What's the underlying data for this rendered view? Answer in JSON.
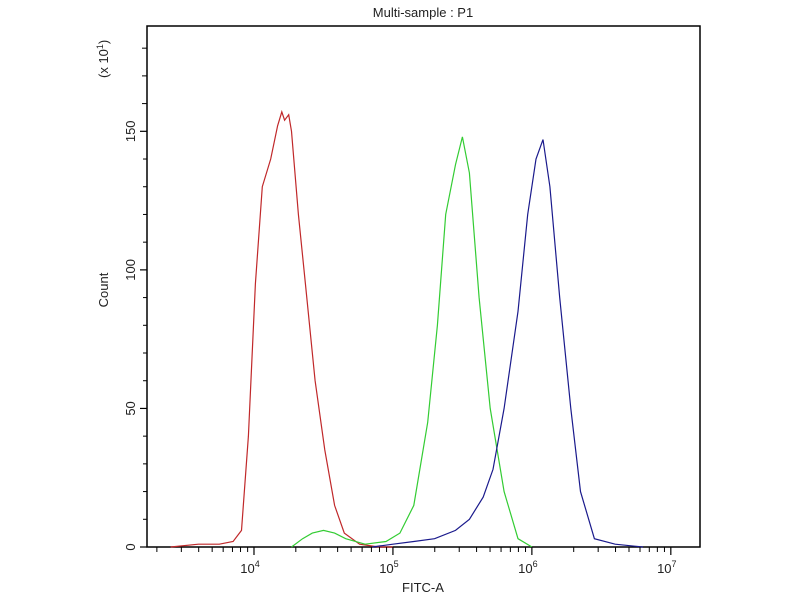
{
  "chart_data": {
    "type": "line",
    "title": "Multi-sample : P1",
    "xlabel": "FITC-A",
    "ylabel": "Count",
    "y_multiplier_label": "(x 10",
    "y_multiplier_exp": "1",
    "x_scale": "log10",
    "xlim_log10": [
      3.23,
      7.21
    ],
    "ylim": [
      0,
      188
    ],
    "x_ticks": [
      {
        "base": "10",
        "exp": "4",
        "value": 4
      },
      {
        "base": "10",
        "exp": "5",
        "value": 5
      },
      {
        "base": "10",
        "exp": "6",
        "value": 6
      },
      {
        "base": "10",
        "exp": "7",
        "value": 7
      }
    ],
    "y_ticks": [
      {
        "label": "0",
        "value": 0
      },
      {
        "label": "50",
        "value": 50
      },
      {
        "label": "100",
        "value": 100
      },
      {
        "label": "150",
        "value": 150
      }
    ],
    "y_minor_ticks": [
      160,
      170,
      180
    ],
    "grid": false,
    "series": [
      {
        "name": "red",
        "color": "#c0282a",
        "x_log10": [
          3.4,
          3.6,
          3.75,
          3.85,
          3.91,
          3.96,
          4.01,
          4.06,
          4.12,
          4.17,
          4.2,
          4.22,
          4.25,
          4.27,
          4.32,
          4.37,
          4.44,
          4.51,
          4.58,
          4.65,
          4.76,
          4.9,
          5.0
        ],
        "y": [
          0,
          1,
          1,
          2,
          6,
          40,
          95,
          130,
          140,
          152,
          157,
          154,
          156,
          150,
          120,
          95,
          60,
          35,
          15,
          5,
          1,
          0,
          0
        ]
      },
      {
        "name": "green",
        "color": "#33cc33",
        "x_log10": [
          4.27,
          4.35,
          4.42,
          4.5,
          4.58,
          4.66,
          4.8,
          4.95,
          5.05,
          5.15,
          5.25,
          5.32,
          5.38,
          5.45,
          5.5,
          5.55,
          5.62,
          5.7,
          5.8,
          5.9,
          6.0
        ],
        "y": [
          0,
          3,
          5,
          6,
          5,
          3,
          1,
          2,
          5,
          15,
          45,
          80,
          120,
          138,
          148,
          135,
          90,
          50,
          20,
          3,
          0
        ]
      },
      {
        "name": "blue",
        "color": "#1a1a8c",
        "x_log10": [
          4.85,
          5.0,
          5.15,
          5.3,
          5.45,
          5.55,
          5.65,
          5.72,
          5.8,
          5.9,
          5.97,
          6.03,
          6.08,
          6.13,
          6.2,
          6.28,
          6.35,
          6.45,
          6.6,
          6.8
        ],
        "y": [
          0,
          1,
          2,
          3,
          6,
          10,
          18,
          28,
          50,
          85,
          120,
          140,
          147,
          130,
          90,
          50,
          20,
          3,
          1,
          0
        ]
      }
    ]
  }
}
